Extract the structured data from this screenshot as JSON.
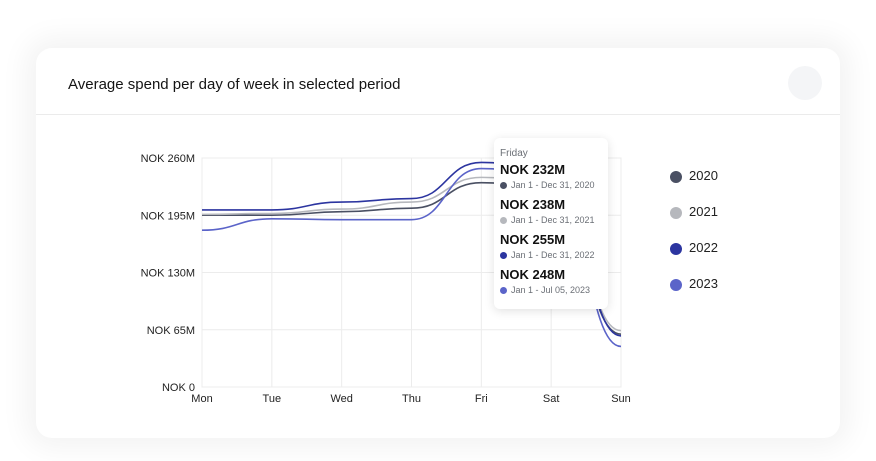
{
  "card": {
    "title": "Average spend per day of week in selected period"
  },
  "chart_data": {
    "type": "line",
    "title": "Average spend per day of week in selected period",
    "categories": [
      "Mon",
      "Tue",
      "Wed",
      "Thu",
      "Fri",
      "Sat",
      "Sun"
    ],
    "y_ticks": [
      {
        "value": 0,
        "label": "NOK 0"
      },
      {
        "value": 65,
        "label": "NOK 65M"
      },
      {
        "value": 130,
        "label": "NOK 130M"
      },
      {
        "value": 195,
        "label": "NOK 195M"
      },
      {
        "value": 260,
        "label": "NOK 260M"
      }
    ],
    "ylim": [
      0,
      260
    ],
    "y_unit": "NOK M",
    "grid": true,
    "legend_position": "right",
    "series": [
      {
        "name": "2020",
        "color": "#4a5063",
        "values": [
          195,
          195,
          199,
          203,
          232,
          226,
          60
        ]
      },
      {
        "name": "2021",
        "color": "#b6b8bd",
        "values": [
          196,
          197,
          202,
          210,
          238,
          232,
          64
        ]
      },
      {
        "name": "2022",
        "color": "#2c35a0",
        "values": [
          201,
          201,
          210,
          214,
          255,
          246,
          58
        ]
      },
      {
        "name": "2023",
        "color": "#5b64c9",
        "values": [
          178,
          191,
          190,
          190,
          248,
          240,
          46
        ]
      }
    ]
  },
  "tooltip": {
    "title": "Friday",
    "entries": [
      {
        "value": "NOK 232M",
        "range": "Jan 1 - Dec 31, 2020",
        "color": "#4a5063"
      },
      {
        "value": "NOK 238M",
        "range": "Jan 1 - Dec 31, 2021",
        "color": "#b6b8bd"
      },
      {
        "value": "NOK 255M",
        "range": "Jan 1 - Dec 31, 2022",
        "color": "#2c35a0"
      },
      {
        "value": "NOK 248M",
        "range": "Jan 1 - Jul 05, 2023",
        "color": "#5b64c9"
      }
    ]
  }
}
